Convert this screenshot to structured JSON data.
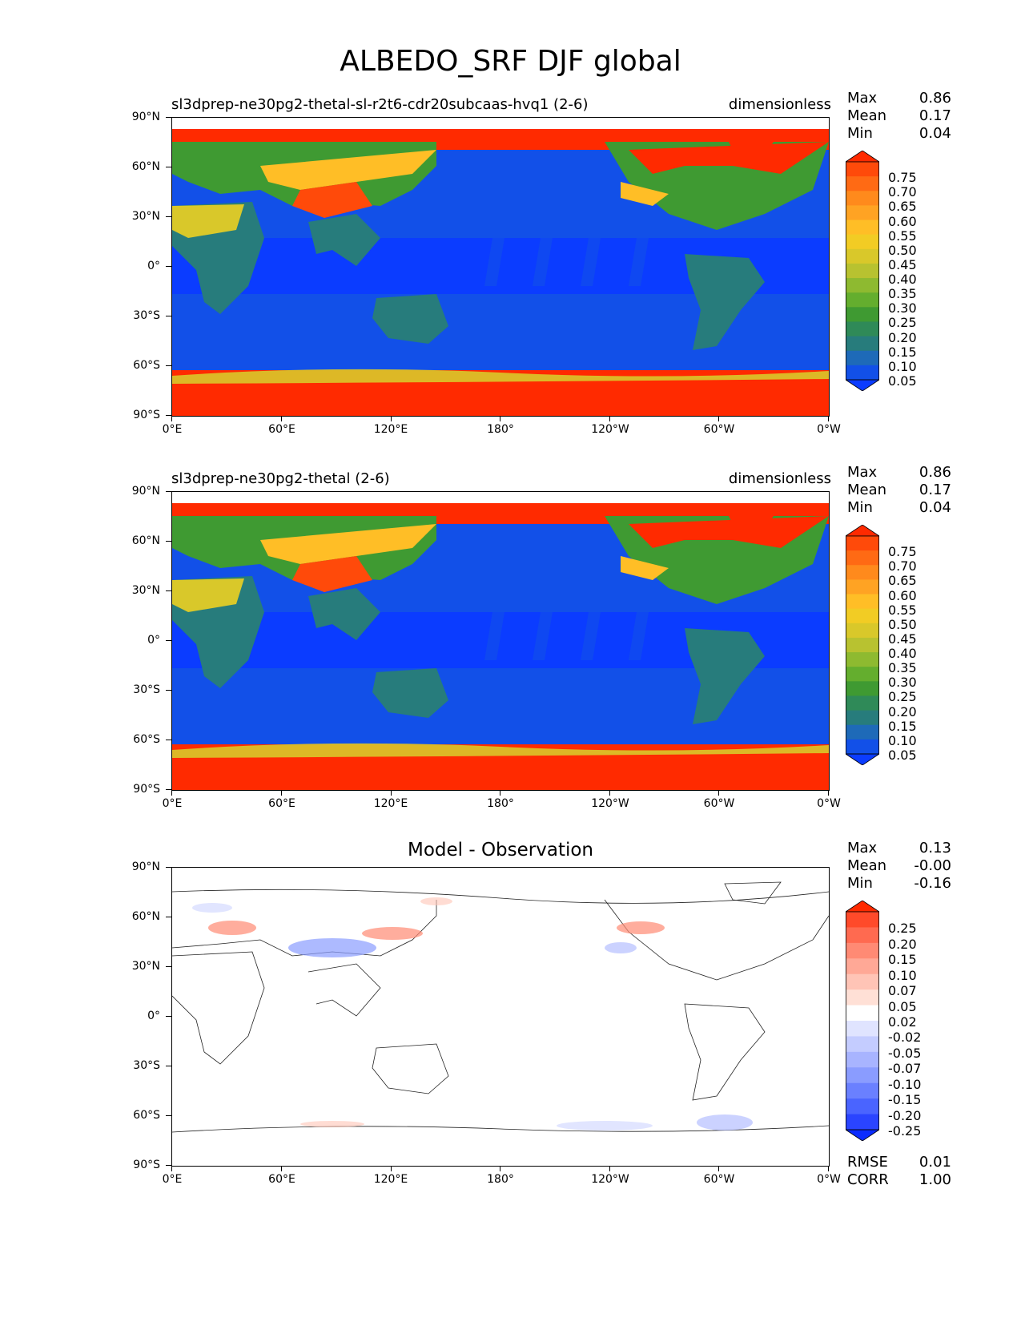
{
  "title": "ALBEDO_SRF DJF global",
  "axes": {
    "yticks": [
      "90°N",
      "60°N",
      "30°N",
      "0°",
      "30°S",
      "60°S",
      "90°S"
    ],
    "xticks": [
      "0°E",
      "60°E",
      "120°E",
      "180°",
      "120°W",
      "60°W",
      "0°W"
    ]
  },
  "panels": [
    {
      "left_title": "sl3dprep-ne30pg2-thetal-sl-r2t6-cdr20subcaas-hvq1 (2-6)",
      "right_title": "dimensionless",
      "center_title": "",
      "stats": [
        {
          "label": "Max",
          "value": "0.86"
        },
        {
          "label": "Mean",
          "value": "0.17"
        },
        {
          "label": "Min",
          "value": "0.04"
        }
      ],
      "extra_stats": [],
      "colorbar": {
        "labels": [
          "0.75",
          "0.70",
          "0.65",
          "0.60",
          "0.55",
          "0.50",
          "0.45",
          "0.40",
          "0.35",
          "0.30",
          "0.25",
          "0.20",
          "0.15",
          "0.10",
          "0.05"
        ],
        "colors": [
          "#ff2a00",
          "#ff4a0a",
          "#ff6a14",
          "#ff8a1c",
          "#ffa323",
          "#ffbe26",
          "#f2cc24",
          "#d9c82a",
          "#b8c230",
          "#8eba30",
          "#64ae2e",
          "#3f9a32",
          "#2f8a58",
          "#277c7c",
          "#1e6ab8",
          "#1250e8",
          "#0b3cff"
        ]
      }
    },
    {
      "left_title": "sl3dprep-ne30pg2-thetal (2-6)",
      "right_title": "dimensionless",
      "center_title": "",
      "stats": [
        {
          "label": "Max",
          "value": "0.86"
        },
        {
          "label": "Mean",
          "value": "0.17"
        },
        {
          "label": "Min",
          "value": "0.04"
        }
      ],
      "extra_stats": [],
      "colorbar": {
        "labels": [
          "0.75",
          "0.70",
          "0.65",
          "0.60",
          "0.55",
          "0.50",
          "0.45",
          "0.40",
          "0.35",
          "0.30",
          "0.25",
          "0.20",
          "0.15",
          "0.10",
          "0.05"
        ],
        "colors": [
          "#ff2a00",
          "#ff4a0a",
          "#ff6a14",
          "#ff8a1c",
          "#ffa323",
          "#ffbe26",
          "#f2cc24",
          "#d9c82a",
          "#b8c230",
          "#8eba30",
          "#64ae2e",
          "#3f9a32",
          "#2f8a58",
          "#277c7c",
          "#1e6ab8",
          "#1250e8",
          "#0b3cff"
        ]
      }
    },
    {
      "left_title": "",
      "right_title": "",
      "center_title": "Model - Observation",
      "stats": [
        {
          "label": "Max",
          "value": "0.13"
        },
        {
          "label": "Mean",
          "value": "-0.00"
        },
        {
          "label": "Min",
          "value": "-0.16"
        }
      ],
      "extra_stats": [
        {
          "label": "RMSE",
          "value": "0.01"
        },
        {
          "label": "CORR",
          "value": "1.00"
        }
      ],
      "colorbar": {
        "labels": [
          "0.25",
          "0.20",
          "0.15",
          "0.10",
          "0.07",
          "0.05",
          "0.02",
          "-0.02",
          "-0.05",
          "-0.07",
          "-0.10",
          "-0.15",
          "-0.20",
          "-0.25"
        ],
        "colors": [
          "#ff2a00",
          "#ff4a2a",
          "#ff6a50",
          "#ff8a74",
          "#ffa896",
          "#ffc4b6",
          "#ffe0d6",
          "#ffffff",
          "#e0e4ff",
          "#c4ccff",
          "#a8b4ff",
          "#8a9cff",
          "#6a80ff",
          "#4a64ff",
          "#2a44ff",
          "#0b2cff"
        ]
      }
    }
  ]
}
